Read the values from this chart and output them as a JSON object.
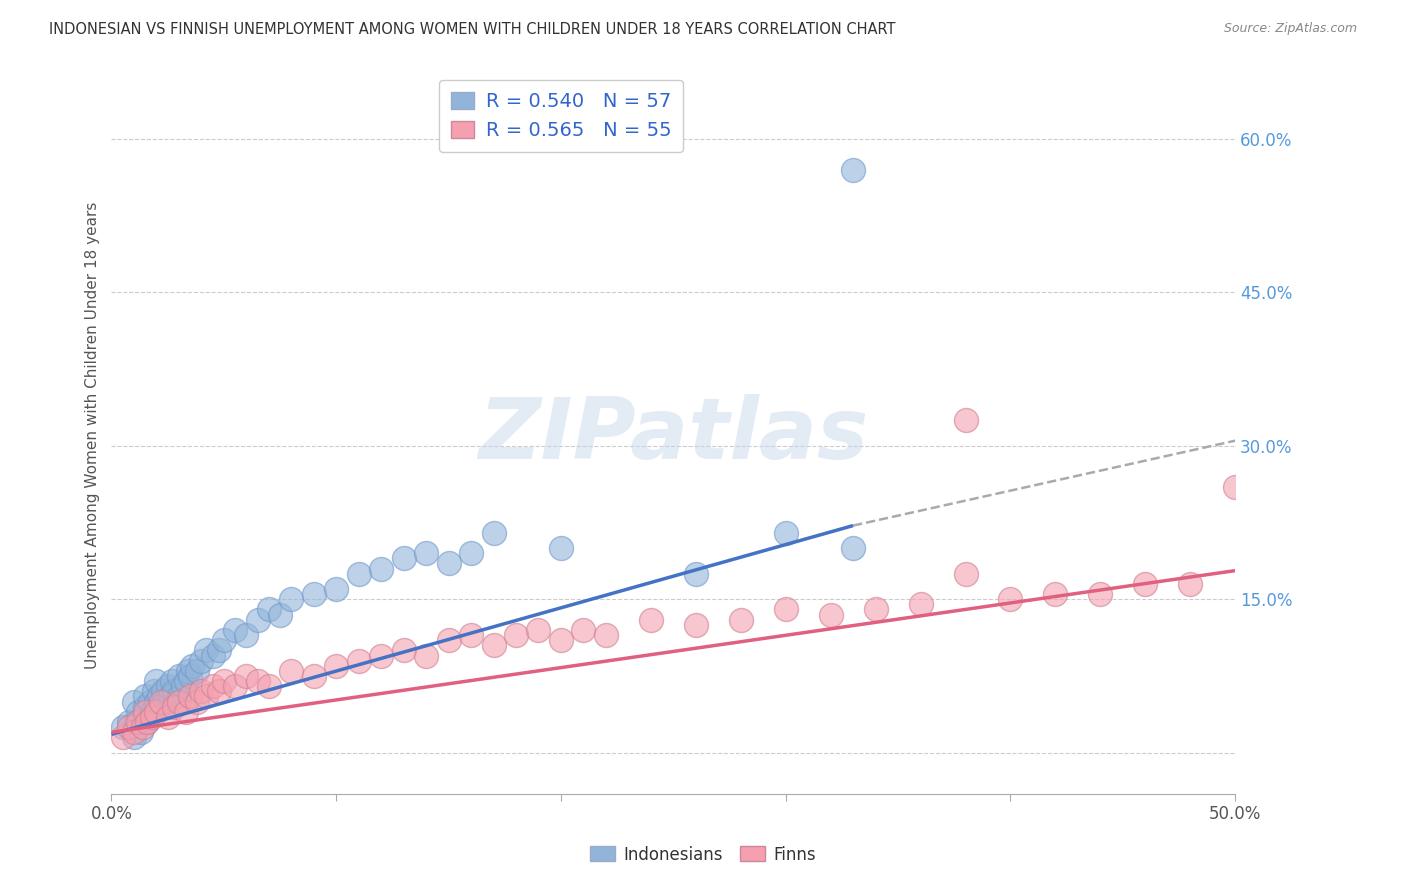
{
  "title": "INDONESIAN VS FINNISH UNEMPLOYMENT AMONG WOMEN WITH CHILDREN UNDER 18 YEARS CORRELATION CHART",
  "source": "Source: ZipAtlas.com",
  "ylabel": "Unemployment Among Women with Children Under 18 years",
  "xlim": [
    0.0,
    0.5
  ],
  "ylim": [
    -0.04,
    0.66
  ],
  "xticks": [
    0.0,
    0.1,
    0.2,
    0.3,
    0.4,
    0.5
  ],
  "ytick_vals": [
    0.0,
    0.15,
    0.3,
    0.45,
    0.6
  ],
  "xtick_labels": [
    "0.0%",
    "",
    "",
    "",
    "",
    "50.0%"
  ],
  "ytick_labels": [
    "",
    "15.0%",
    "30.0%",
    "45.0%",
    "60.0%"
  ],
  "blue_color": "#92B4D9",
  "pink_color": "#F4A0B0",
  "blue_line_color": "#4472C4",
  "pink_line_color": "#E06080",
  "dash_color": "#AAAAAA",
  "watermark_text": "ZIPatlas",
  "watermark_color": "#C8D8EC",
  "legend_text1": "R = 0.540   N = 57",
  "legend_text2": "R = 0.565   N = 55",
  "blue_line_x": [
    0.0,
    0.33
  ],
  "blue_line_y": [
    0.018,
    0.222
  ],
  "dash_line_x": [
    0.33,
    0.5
  ],
  "dash_line_y": [
    0.222,
    0.305
  ],
  "pink_line_x": [
    0.0,
    0.5
  ],
  "pink_line_y": [
    0.02,
    0.178
  ],
  "indonesian_x": [
    0.005,
    0.008,
    0.01,
    0.01,
    0.011,
    0.012,
    0.013,
    0.014,
    0.015,
    0.015,
    0.016,
    0.017,
    0.018,
    0.019,
    0.02,
    0.02,
    0.021,
    0.022,
    0.023,
    0.024,
    0.025,
    0.026,
    0.027,
    0.028,
    0.03,
    0.03,
    0.032,
    0.033,
    0.034,
    0.035,
    0.036,
    0.038,
    0.04,
    0.042,
    0.045,
    0.048,
    0.05,
    0.055,
    0.06,
    0.065,
    0.07,
    0.075,
    0.08,
    0.09,
    0.1,
    0.11,
    0.12,
    0.13,
    0.14,
    0.15,
    0.16,
    0.17,
    0.2,
    0.26,
    0.3,
    0.33,
    0.33
  ],
  "indonesian_y": [
    0.025,
    0.03,
    0.015,
    0.05,
    0.03,
    0.04,
    0.02,
    0.035,
    0.045,
    0.055,
    0.03,
    0.05,
    0.04,
    0.06,
    0.05,
    0.07,
    0.055,
    0.045,
    0.06,
    0.05,
    0.065,
    0.055,
    0.07,
    0.06,
    0.055,
    0.075,
    0.065,
    0.07,
    0.08,
    0.075,
    0.085,
    0.08,
    0.09,
    0.1,
    0.095,
    0.1,
    0.11,
    0.12,
    0.115,
    0.13,
    0.14,
    0.135,
    0.15,
    0.155,
    0.16,
    0.175,
    0.18,
    0.19,
    0.195,
    0.185,
    0.195,
    0.215,
    0.2,
    0.175,
    0.215,
    0.2,
    0.57
  ],
  "finn_x": [
    0.005,
    0.008,
    0.01,
    0.012,
    0.014,
    0.015,
    0.016,
    0.018,
    0.02,
    0.022,
    0.025,
    0.028,
    0.03,
    0.033,
    0.035,
    0.038,
    0.04,
    0.042,
    0.045,
    0.048,
    0.05,
    0.055,
    0.06,
    0.065,
    0.07,
    0.08,
    0.09,
    0.1,
    0.11,
    0.12,
    0.13,
    0.14,
    0.15,
    0.16,
    0.17,
    0.18,
    0.19,
    0.2,
    0.21,
    0.22,
    0.24,
    0.26,
    0.28,
    0.3,
    0.32,
    0.34,
    0.36,
    0.38,
    0.4,
    0.42,
    0.44,
    0.46,
    0.48,
    0.38,
    0.5
  ],
  "finn_y": [
    0.015,
    0.025,
    0.02,
    0.03,
    0.025,
    0.04,
    0.03,
    0.035,
    0.04,
    0.05,
    0.035,
    0.045,
    0.05,
    0.04,
    0.055,
    0.05,
    0.06,
    0.055,
    0.065,
    0.06,
    0.07,
    0.065,
    0.075,
    0.07,
    0.065,
    0.08,
    0.075,
    0.085,
    0.09,
    0.095,
    0.1,
    0.095,
    0.11,
    0.115,
    0.105,
    0.115,
    0.12,
    0.11,
    0.12,
    0.115,
    0.13,
    0.125,
    0.13,
    0.14,
    0.135,
    0.14,
    0.145,
    0.325,
    0.15,
    0.155,
    0.155,
    0.165,
    0.165,
    0.175,
    0.26
  ]
}
